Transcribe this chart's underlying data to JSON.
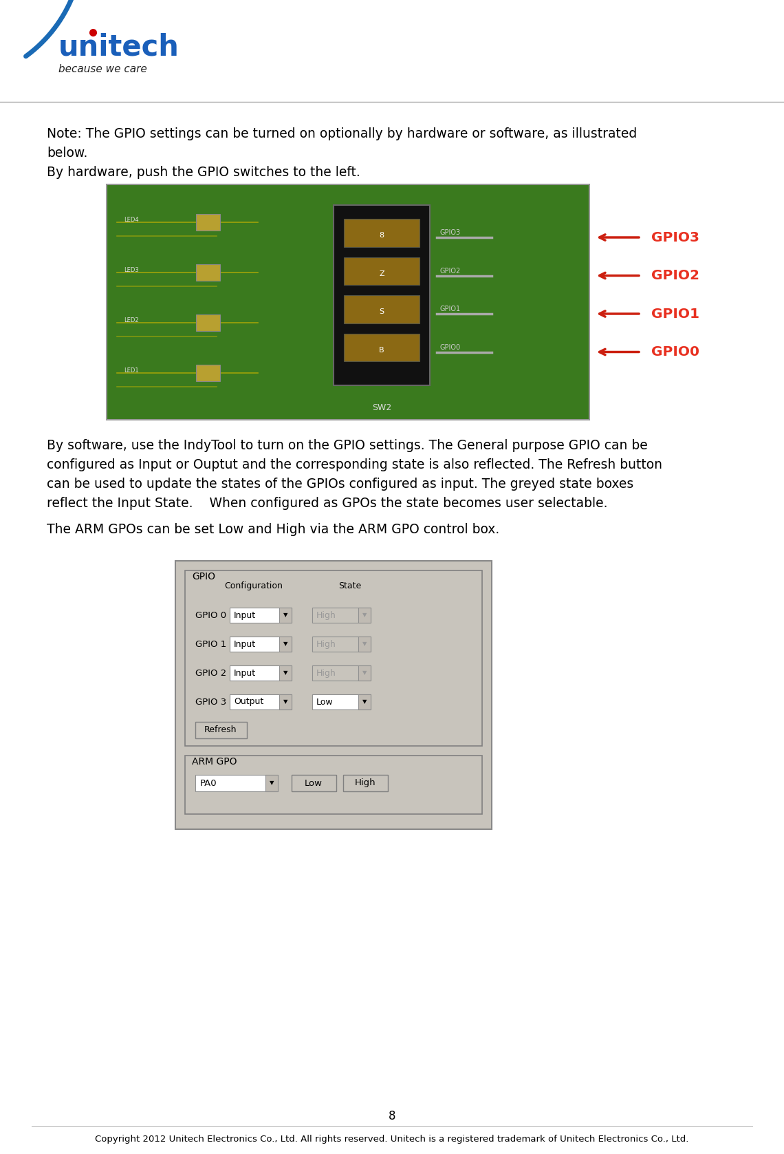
{
  "bg_color": "#ffffff",
  "page_number": "8",
  "copyright_text": "Copyright 2012 Unitech Electronics Co., Ltd. All rights reserved. Unitech is a registered trademark of Unitech Electronics Co., Ltd.",
  "note_text": "Note: The GPIO settings can be turned on optionally by hardware or software, as illustrated\nbelow.\nBy hardware, push the GPIO switches to the left.",
  "body_text1": "By software, use the IndyTool to turn on the GPIO settings. The General purpose GPIO can be\nconfigured as Input or Ouptut and the corresponding state is also reflected. The Refresh button\ncan be used to update the states of the GPIOs configured as input. The greyed state boxes\nreflect the Input State.    When configured as GPOs the state becomes user selectable.",
  "body_text2": "The ARM GPOs can be set Low and High via the ARM GPO control box.",
  "gpio_labels": [
    "GPIO0",
    "GPIO1",
    "GPIO2",
    "GPIO3"
  ],
  "gpio_label_color": "#e83020",
  "arrow_color": "#cc2010",
  "blue_curve_color": "#1a6ab5",
  "logo_blue_color": "#1a5fba",
  "logo_red_color": "#cc0000",
  "text_color": "#000000",
  "font_size_body": 13.5,
  "font_size_note": 13.5,
  "font_size_logo": 30,
  "font_size_tagline": 11,
  "font_size_page": 12,
  "font_size_copyright": 9.5,
  "font_size_gpio_label": 14.5,
  "gui_bg": "#c8c4bc",
  "gui_box_bg": "#c8c4bc",
  "dropdown_bg": "#ffffff",
  "greyed_bg": "#c8c4bc",
  "greyed_text": "#999999"
}
